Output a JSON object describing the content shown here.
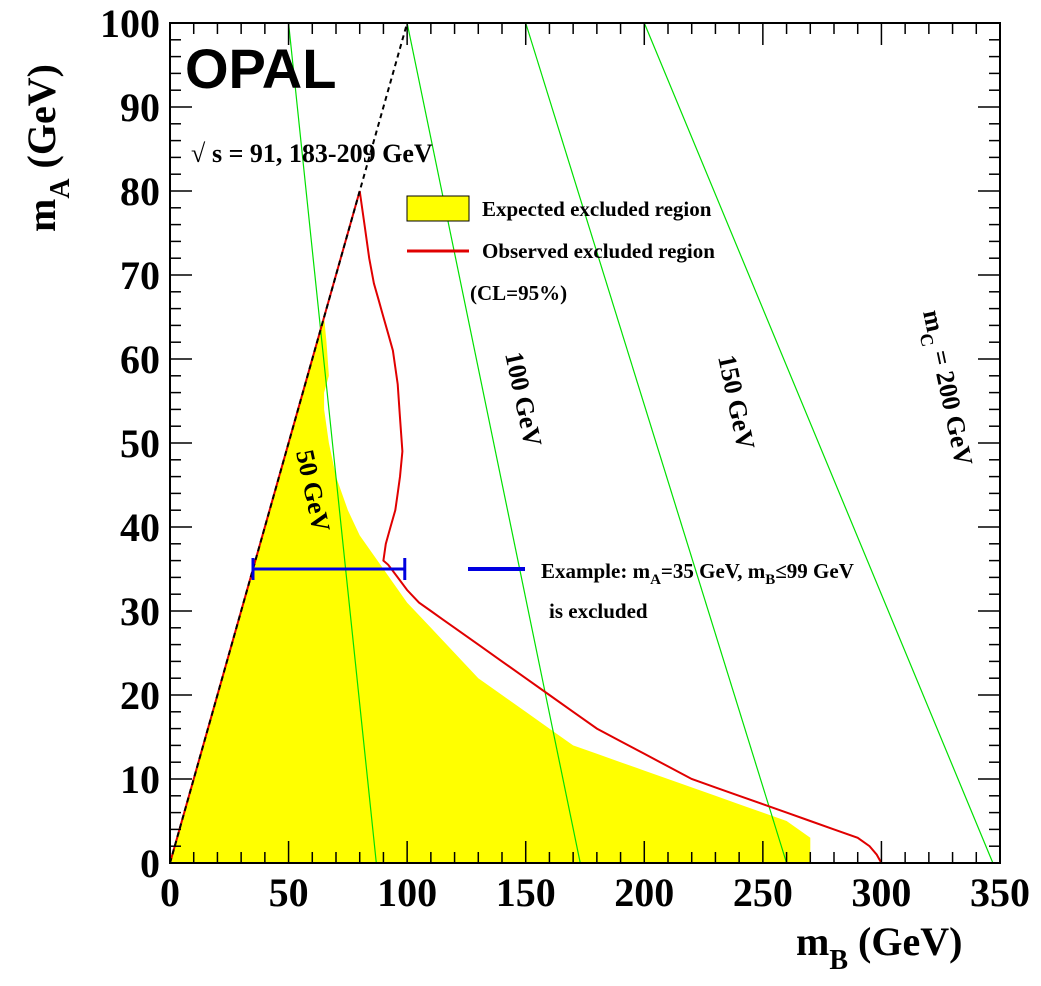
{
  "chart_data": {
    "type": "area",
    "experiment": "OPAL",
    "energy_label": "s = 91, 183-209 GeV",
    "sqrt_symbol": "√",
    "xlabel": {
      "main": "m",
      "sub": "B",
      "unit": "(GeV)"
    },
    "ylabel": {
      "main": "m",
      "sub": "A",
      "unit": "(GeV)"
    },
    "xlim": [
      0,
      350
    ],
    "ylim": [
      0,
      100
    ],
    "xticks": [
      "0",
      "50",
      "100",
      "150",
      "200",
      "250",
      "300",
      "350"
    ],
    "yticks": [
      "0",
      "10",
      "20",
      "30",
      "40",
      "50",
      "60",
      "70",
      "80",
      "90",
      "100"
    ],
    "colors": {
      "expected": "#ffff00",
      "observed": "#e00000",
      "example": "#0000e0",
      "mc_lines": "#00e000",
      "diagonal": "#000000"
    },
    "kinematic_limit": {
      "x": [
        0,
        100
      ],
      "y": [
        0,
        100
      ]
    },
    "expected_boundary": {
      "x": [
        0,
        270,
        270,
        260,
        250,
        240,
        230,
        220,
        210,
        200,
        190,
        180,
        170,
        160,
        150,
        140,
        130,
        120,
        110,
        100,
        90,
        80,
        75,
        70,
        67,
        65,
        65,
        67,
        66,
        65
      ],
      "y": [
        0,
        0,
        3,
        5,
        6,
        7,
        8,
        9,
        10,
        11,
        12,
        13,
        14,
        16,
        18,
        20,
        22,
        25,
        28,
        31,
        35,
        39,
        42,
        46,
        50,
        54,
        56,
        58,
        62,
        65
      ]
    },
    "observed_boundary": {
      "x": [
        0,
        80,
        82,
        84,
        86,
        88,
        90,
        92,
        94,
        95,
        96,
        97,
        98,
        97,
        96,
        95,
        93,
        91,
        90,
        92,
        96,
        100,
        105,
        110,
        115,
        120,
        130,
        140,
        150,
        160,
        170,
        180,
        190,
        200,
        210,
        220,
        230,
        240,
        250,
        260,
        270,
        280,
        290,
        295,
        298,
        300
      ],
      "y": [
        0,
        80,
        76,
        72,
        69,
        67,
        65,
        63,
        61,
        59,
        57,
        53,
        49,
        46,
        44,
        42,
        40,
        38,
        36,
        35.5,
        34,
        32.5,
        31,
        30,
        29,
        28,
        26,
        24,
        22,
        20,
        18,
        16,
        14.5,
        13,
        11.5,
        10,
        9,
        8,
        7,
        6,
        5,
        4,
        3,
        2,
        1,
        0
      ]
    },
    "mc_lines": [
      {
        "label": "50 GeV",
        "x_top": 50,
        "x_bottom": 87
      },
      {
        "label": "100 GeV",
        "x_top": 100,
        "x_bottom": 173
      },
      {
        "label": "150 GeV",
        "x_top": 150,
        "x_bottom": 260
      },
      {
        "label_main": "m",
        "label_sub": "C",
        "label_rest": " = 200 GeV",
        "x_top": 200,
        "x_bottom": 347
      }
    ],
    "example": {
      "y": 35,
      "x_min": 35,
      "x_max": 99
    },
    "legend": {
      "expected": "Expected excluded region",
      "observed": "Observed excluded region",
      "cl": "(CL=95%)",
      "example_line1_a": "Example: m",
      "example_line1_sub_a": "A",
      "example_line1_b": "=35 GeV, m",
      "example_line1_sub_b": "B",
      "example_line1_c": "≤99 GeV",
      "example_line2": "is excluded"
    }
  }
}
